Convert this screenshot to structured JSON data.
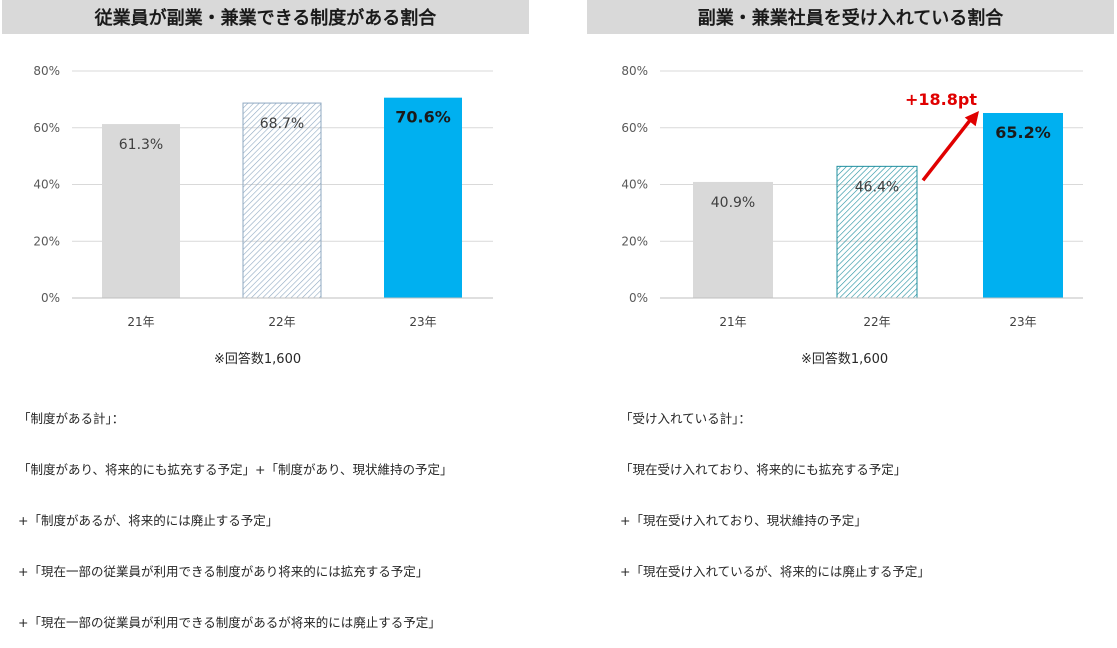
{
  "colors": {
    "gray": "#d9d9d9",
    "hatch": "#8fa9c2",
    "hatch_right": "#1f8f9f",
    "blue": "#00b0f0",
    "grid": "#d9d9d9",
    "arrow": "#e00000",
    "title_bg": "#d9d9d9"
  },
  "left": {
    "answer_count": "※回答数1,600",
    "notes": [
      "「制度がある計」：",
      "「制度があり、将来的にも拡充する予定」+「制度があり、現状維持の予定」",
      "+「制度があるが、将来的には廃止する予定」",
      "+「現在一部の従業員が利用できる制度があり将来的には拡充する予定」",
      "+「現在一部の従業員が利用できる制度があるが将来的には廃止する予定」"
    ]
  },
  "right": {
    "answer_count": "※回答数1,600",
    "notes": [
      "「受け入れている計」：",
      "「現在受け入れており、将来的にも拡充する予定」",
      "+「現在受け入れており、現状維持の予定」",
      "+「現在受け入れているが、将来的には廃止する予定」"
    ]
  },
  "chart_data": [
    {
      "type": "bar",
      "title": "従業員が副業・兼業できる制度がある割合",
      "categories": [
        "21年",
        "22年",
        "23年"
      ],
      "values": [
        61.3,
        68.7,
        70.6
      ],
      "data_labels": [
        "61.3%",
        "68.7%",
        "70.6%"
      ],
      "bar_styles": [
        "solid-gray",
        "hatched",
        "solid-blue"
      ],
      "y_ticks": [
        "0%",
        "20%",
        "40%",
        "60%",
        "80%"
      ],
      "ylim": [
        0,
        80
      ],
      "grid": true
    },
    {
      "type": "bar",
      "title": "副業・兼業社員を受け入れている割合",
      "categories": [
        "21年",
        "22年",
        "23年"
      ],
      "values": [
        40.9,
        46.4,
        65.2
      ],
      "data_labels": [
        "40.9%",
        "46.4%",
        "65.2%"
      ],
      "bar_styles": [
        "solid-gray",
        "hatched",
        "solid-blue"
      ],
      "y_ticks": [
        "0%",
        "20%",
        "40%",
        "60%",
        "80%"
      ],
      "ylim": [
        0,
        80
      ],
      "grid": true,
      "annotation": "+18.8pt"
    }
  ]
}
